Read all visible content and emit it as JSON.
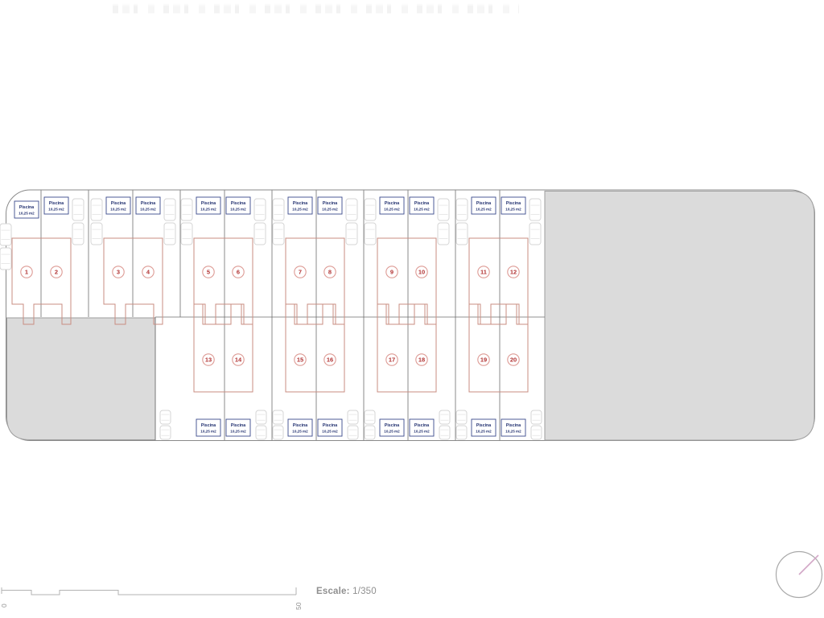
{
  "plan": {
    "pool_label": "Piscina",
    "pool_area": "10,25 m2",
    "plots_top": [
      "1",
      "2",
      "3",
      "4",
      "5",
      "6",
      "7",
      "8",
      "9",
      "10",
      "11",
      "12"
    ],
    "plots_bottom": [
      "13",
      "14",
      "15",
      "16",
      "17",
      "18",
      "19",
      "20"
    ]
  },
  "scale": {
    "name_label": "Escale:",
    "value": "1/350",
    "start_tick": "0",
    "end_tick": "50"
  },
  "colors": {
    "site_outline": "#8a8a8a",
    "boundary_line": "#6e6e6e",
    "gray_area_fill": "#dbdbdb",
    "gray_area_border": "#9e9e9e",
    "building_outline": "#c98d82",
    "plot_circle": "#dd9a94",
    "plot_number": "#b13232",
    "pool_box_border": "#3a4a8c",
    "pool_text": "#1f2e6e",
    "car_outline": "#d4d4d4",
    "scale_bar": "#b3b3b3",
    "scale_text": "#8f8f8f",
    "compass_ring": "#a9a9a9",
    "compass_needle": "#d2a6c6"
  }
}
